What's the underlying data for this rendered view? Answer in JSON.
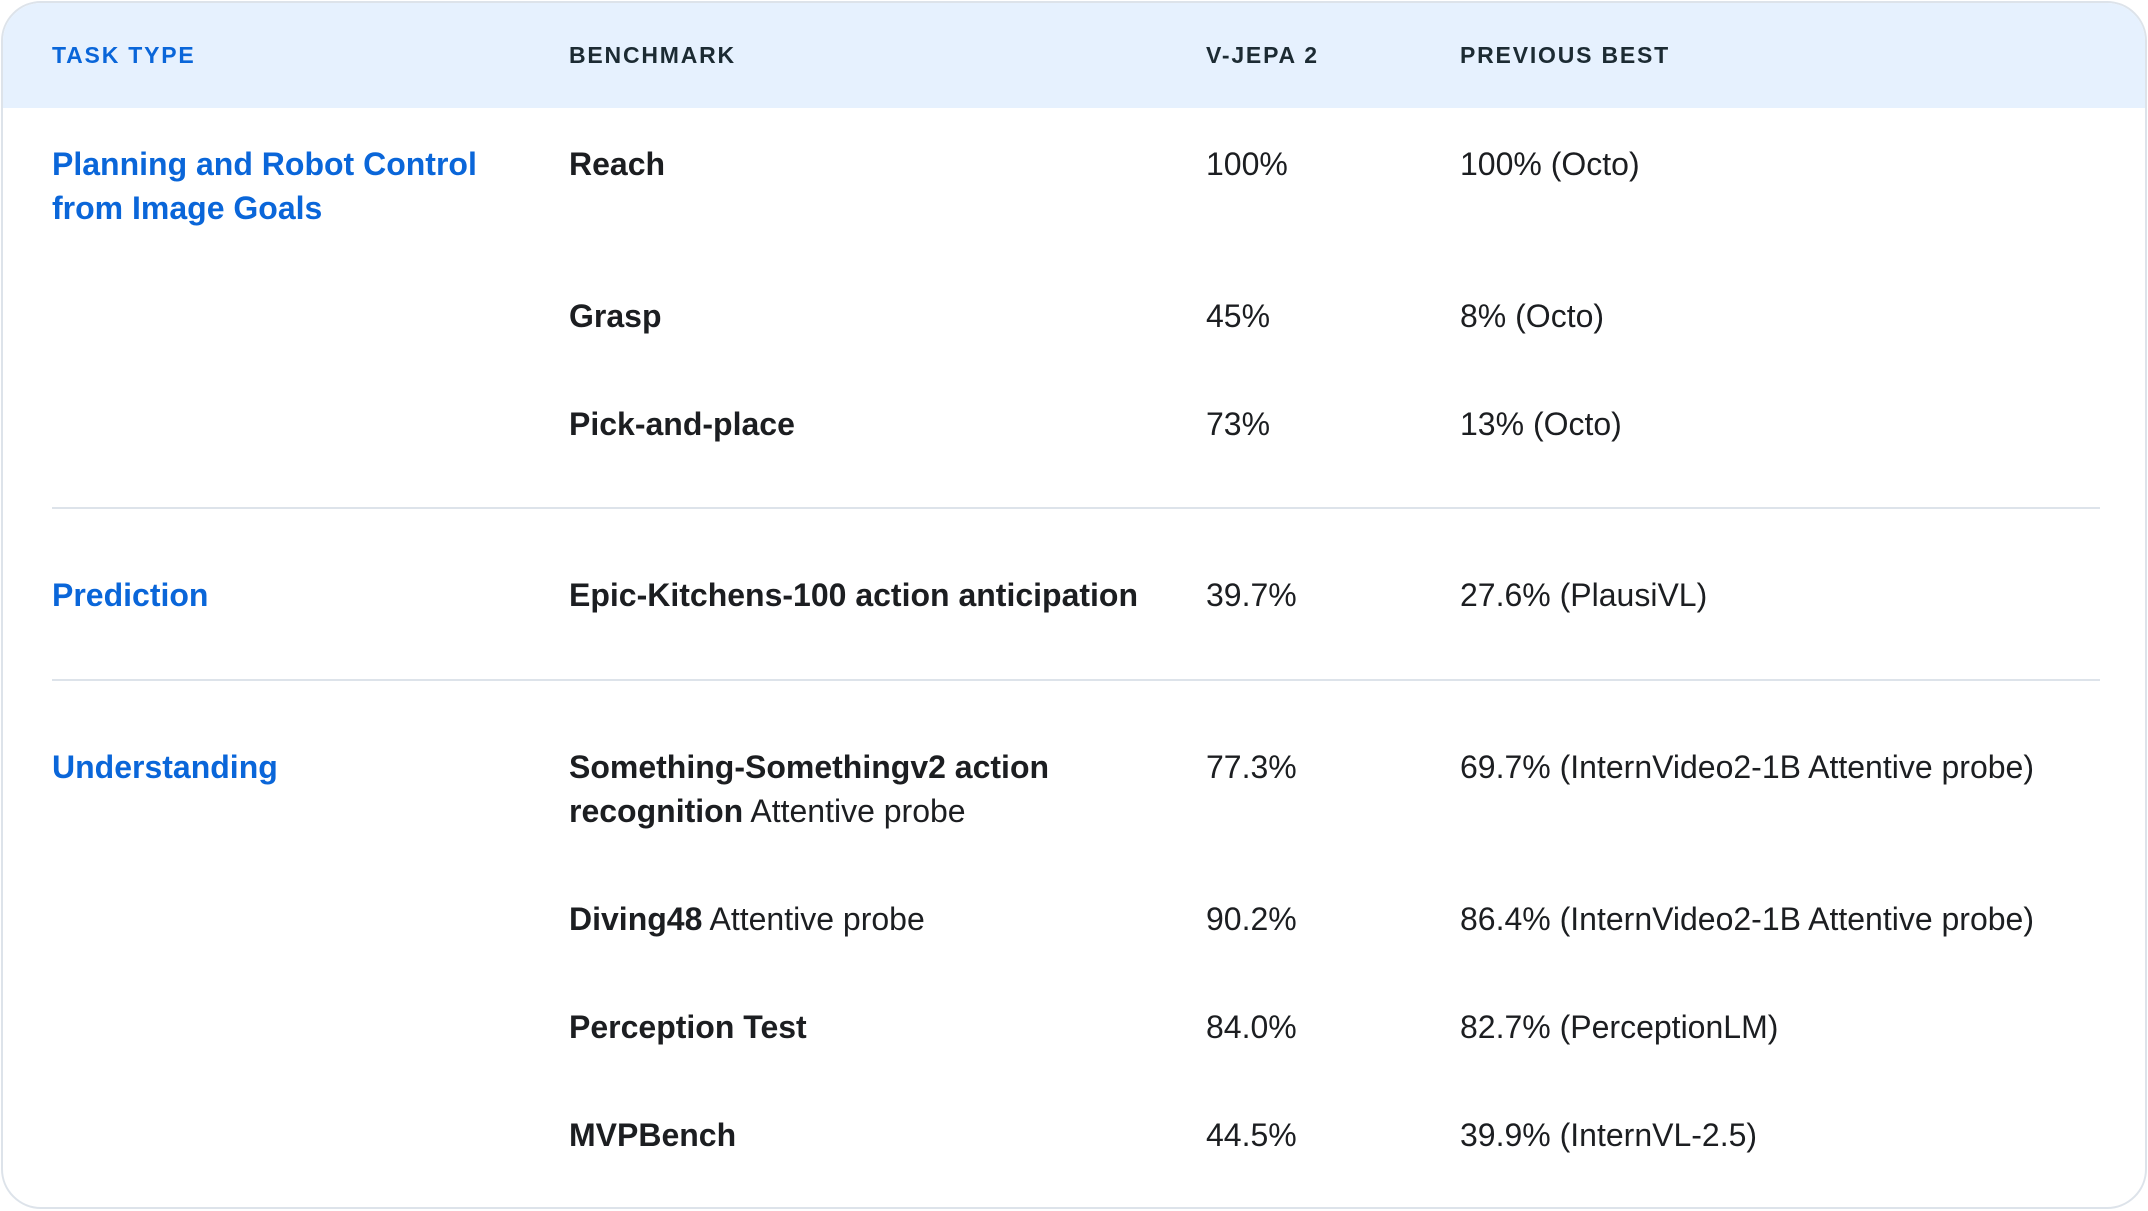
{
  "headers": {
    "task_type": "TASK TYPE",
    "benchmark": "BENCHMARK",
    "vjepa": "V-JEPA 2",
    "previous_best": "PREVIOUS BEST"
  },
  "groups": [
    {
      "task": "Planning and Robot Control from Image Goals",
      "rows": [
        {
          "bench_bold": "Reach",
          "bench_rest": "",
          "score": "100%",
          "prev": "100% (Octo)"
        },
        {
          "bench_bold": "Grasp",
          "bench_rest": "",
          "score": "45%",
          "prev": "8% (Octo)"
        },
        {
          "bench_bold": "Pick-and-place",
          "bench_rest": "",
          "score": "73%",
          "prev": "13% (Octo)"
        }
      ]
    },
    {
      "task": "Prediction",
      "rows": [
        {
          "bench_bold": "Epic-Kitchens-100 action anticipation",
          "bench_rest": "",
          "score": "39.7%",
          "prev": "27.6% (PlausiVL)"
        }
      ]
    },
    {
      "task": "Understanding",
      "rows": [
        {
          "bench_bold": "Something-Somethingv2 action recognition",
          "bench_rest": " Attentive probe",
          "score": "77.3%",
          "prev": "69.7% (InternVideo2-1B Attentive probe)"
        },
        {
          "bench_bold": "Diving48",
          "bench_rest": " Attentive probe",
          "score": "90.2%",
          "prev": "86.4% (InternVideo2-1B Attentive probe)"
        },
        {
          "bench_bold": "Perception Test",
          "bench_rest": "",
          "score": "84.0%",
          "prev": "82.7% (PerceptionLM)"
        },
        {
          "bench_bold": "MVPBench",
          "bench_rest": "",
          "score": "44.5%",
          "prev": "39.9% (InternVL-2.5)"
        }
      ]
    }
  ]
}
